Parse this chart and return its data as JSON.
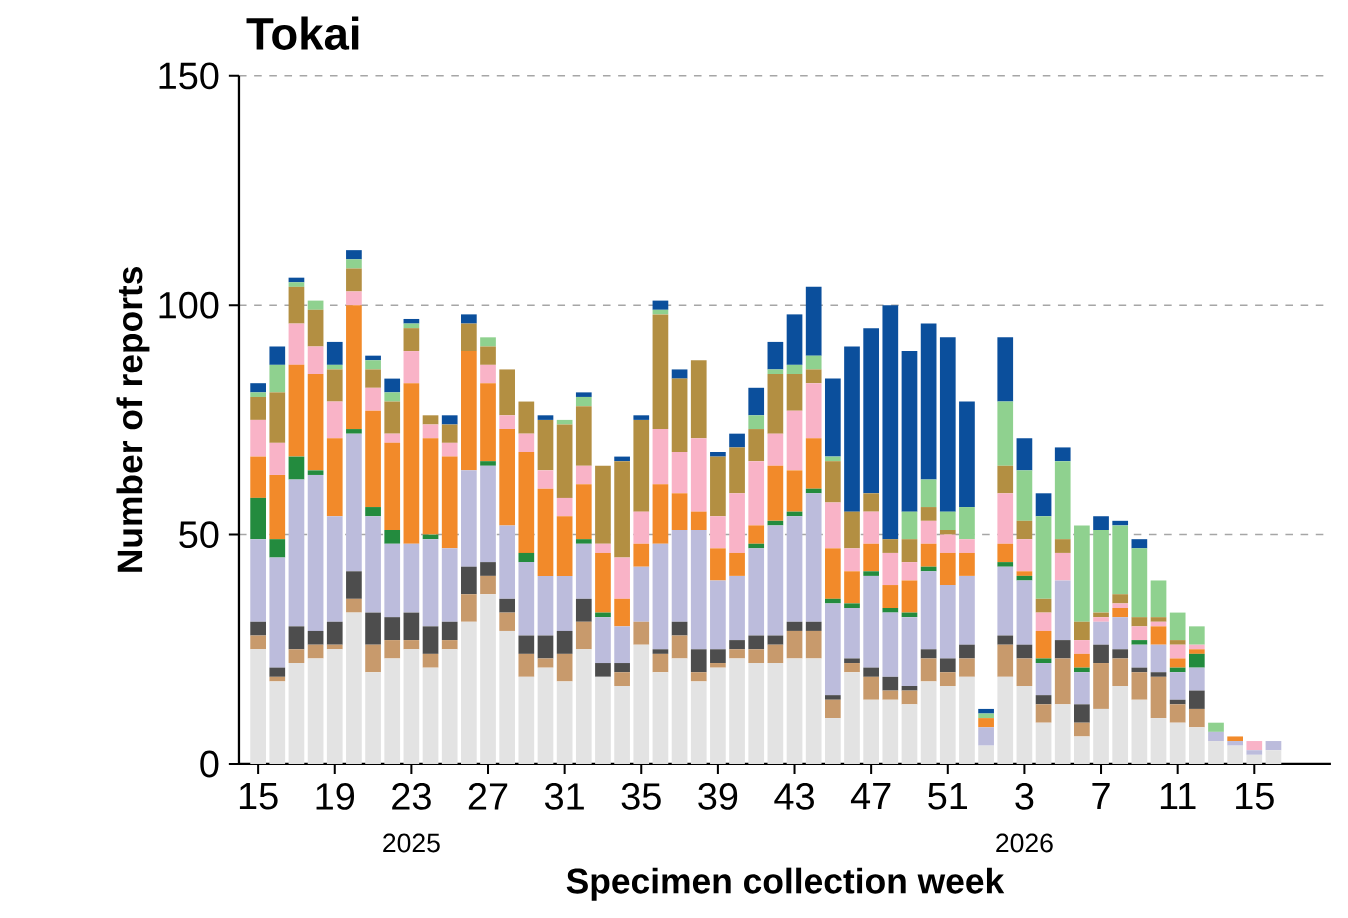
{
  "chart_data": {
    "type": "bar",
    "stacked": true,
    "title": "Tokai",
    "xlabel": "Specimen collection week",
    "ylabel": "Number of reports",
    "categories": [
      "15",
      null,
      null,
      null,
      "19",
      null,
      null,
      null,
      "23",
      null,
      null,
      null,
      "27",
      null,
      null,
      null,
      "31",
      null,
      null,
      null,
      "35",
      null,
      null,
      null,
      "39",
      null,
      null,
      null,
      "43",
      null,
      null,
      null,
      "47",
      null,
      null,
      null,
      "51",
      null,
      null,
      null,
      "3",
      null,
      null,
      null,
      "7",
      null,
      null,
      null,
      "11",
      null,
      null,
      null,
      "15",
      null
    ],
    "series": [
      {
        "color": "#e3e3e3",
        "values": [
          25,
          18,
          22,
          23,
          25,
          33,
          20,
          23,
          25,
          21,
          25,
          31,
          37,
          29,
          19,
          21,
          18,
          25,
          19,
          17,
          26,
          20,
          23,
          18,
          21,
          23,
          22,
          22,
          23,
          23,
          10,
          20,
          14,
          14,
          13,
          18,
          17,
          19,
          4,
          19,
          17,
          9,
          13,
          6,
          12,
          17,
          14,
          10,
          9,
          8,
          5,
          4,
          2,
          3
        ]
      },
      {
        "color": "#c89a6c",
        "values": [
          3,
          1,
          3,
          3,
          1,
          3,
          6,
          4,
          2,
          3,
          2,
          6,
          4,
          4,
          5,
          2,
          6,
          6,
          0,
          3,
          5,
          4,
          5,
          2,
          1,
          2,
          3,
          4,
          6,
          6,
          4,
          2,
          5,
          2,
          3,
          5,
          3,
          4,
          0,
          7,
          6,
          4,
          10,
          3,
          10,
          6,
          6,
          9,
          4,
          4,
          0,
          0,
          0,
          0
        ]
      },
      {
        "color": "#4d4d4d",
        "values": [
          3,
          2,
          5,
          3,
          5,
          6,
          7,
          5,
          6,
          6,
          4,
          6,
          3,
          3,
          4,
          5,
          5,
          5,
          3,
          2,
          0,
          1,
          3,
          5,
          3,
          2,
          3,
          2,
          2,
          2,
          1,
          1,
          2,
          3,
          1,
          2,
          3,
          3,
          0,
          2,
          3,
          2,
          4,
          4,
          4,
          2,
          1,
          1,
          1,
          4,
          0,
          0,
          0,
          0
        ]
      },
      {
        "color": "#bcbcdc",
        "values": [
          18,
          24,
          32,
          34,
          23,
          30,
          21,
          16,
          15,
          19,
          16,
          21,
          21,
          16,
          16,
          13,
          12,
          12,
          10,
          8,
          12,
          23,
          20,
          26,
          15,
          14,
          19,
          24,
          23,
          28,
          20,
          11,
          20,
          14,
          15,
          17,
          16,
          15,
          4,
          15,
          14,
          7,
          13,
          7,
          5,
          7,
          5,
          6,
          6,
          5,
          2,
          1,
          1,
          2
        ]
      },
      {
        "color": "#238b3e",
        "values": [
          9,
          4,
          5,
          1,
          0,
          1,
          2,
          3,
          0,
          1,
          0,
          0,
          1,
          0,
          2,
          0,
          0,
          1,
          1,
          0,
          0,
          0,
          0,
          0,
          0,
          0,
          1,
          1,
          1,
          1,
          1,
          1,
          1,
          1,
          1,
          1,
          0,
          0,
          0,
          1,
          1,
          1,
          0,
          1,
          0,
          0,
          1,
          0,
          1,
          3,
          0,
          0,
          0,
          0
        ]
      },
      {
        "color": "#f28a2a",
        "values": [
          9,
          14,
          20,
          21,
          17,
          27,
          21,
          19,
          35,
          21,
          20,
          26,
          17,
          21,
          22,
          19,
          13,
          12,
          13,
          6,
          5,
          13,
          8,
          4,
          7,
          5,
          4,
          12,
          9,
          11,
          11,
          7,
          6,
          5,
          7,
          5,
          7,
          5,
          2,
          4,
          1,
          6,
          0,
          3,
          0,
          2,
          0,
          4,
          2,
          1,
          0,
          1,
          0,
          0
        ]
      },
      {
        "color": "#f9b3c7",
        "values": [
          8,
          7,
          9,
          6,
          8,
          3,
          5,
          2,
          7,
          3,
          3,
          0,
          4,
          3,
          4,
          4,
          4,
          4,
          2,
          9,
          7,
          12,
          9,
          16,
          7,
          13,
          14,
          7,
          13,
          12,
          10,
          5,
          7,
          7,
          4,
          5,
          4,
          3,
          0,
          11,
          7,
          4,
          6,
          3,
          1,
          1,
          3,
          1,
          3,
          1,
          0,
          0,
          2,
          0
        ]
      },
      {
        "color": "#b38f42",
        "values": [
          5,
          11,
          8,
          8,
          7,
          5,
          4,
          7,
          5,
          2,
          4,
          6,
          4,
          10,
          7,
          11,
          16,
          13,
          17,
          21,
          20,
          25,
          16,
          17,
          13,
          10,
          7,
          13,
          8,
          3,
          9,
          8,
          4,
          3,
          5,
          3,
          1,
          0,
          0,
          6,
          4,
          3,
          3,
          4,
          1,
          2,
          2,
          1,
          1,
          0,
          0,
          0,
          0,
          0
        ]
      },
      {
        "color": "#8fd18f",
        "values": [
          1,
          6,
          1,
          2,
          1,
          2,
          2,
          2,
          1,
          0,
          0,
          0,
          2,
          0,
          0,
          0,
          1,
          2,
          0,
          0,
          0,
          1,
          0,
          0,
          0,
          0,
          3,
          1,
          2,
          3,
          1,
          0,
          0,
          0,
          6,
          6,
          4,
          7,
          1,
          14,
          11,
          18,
          17,
          21,
          18,
          15,
          15,
          8,
          6,
          4,
          2,
          0,
          0,
          0
        ]
      },
      {
        "color": "#0b4f9c",
        "values": [
          2,
          4,
          1,
          0,
          5,
          2,
          1,
          3,
          1,
          0,
          2,
          2,
          0,
          0,
          0,
          1,
          0,
          1,
          0,
          1,
          1,
          2,
          2,
          0,
          1,
          3,
          6,
          6,
          11,
          15,
          17,
          36,
          36,
          51,
          35,
          34,
          38,
          23,
          1,
          14,
          7,
          5,
          3,
          0,
          3,
          1,
          2,
          0,
          0,
          0,
          0,
          0,
          0,
          0
        ]
      }
    ],
    "ylim": [
      0,
      150
    ],
    "yticks": [
      0,
      50,
      100,
      150
    ],
    "grid": "y",
    "annotations": [
      "2025",
      "2026"
    ]
  }
}
